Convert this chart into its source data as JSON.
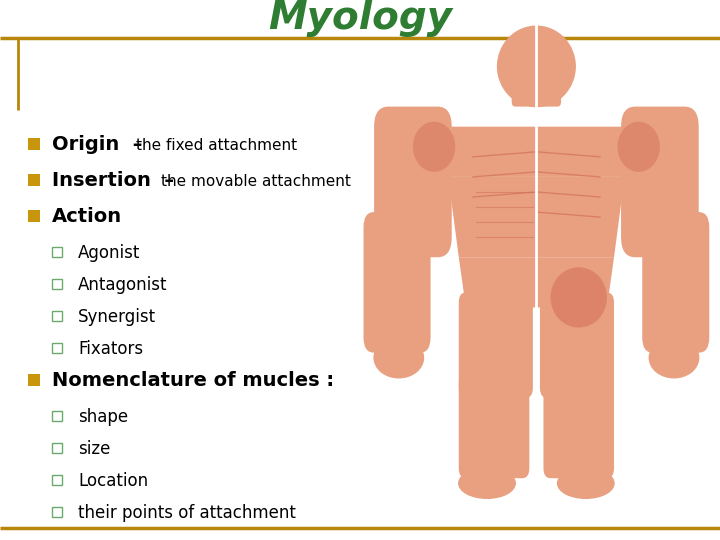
{
  "title": "Myology",
  "title_color": "#2e7d32",
  "title_fontsize": 28,
  "bg_color": "#ffffff",
  "border_color": "#b8860b",
  "bullet_color": "#c8960c",
  "sub_bullet_color": "#6aaa6a",
  "content": [
    {
      "type": "bullet",
      "text_bold": "Origin",
      "text_dash": "–",
      "text_rest": "the fixed attachment",
      "bold_size": 14,
      "rest_size": 11
    },
    {
      "type": "bullet",
      "text_bold": "Insertion",
      "text_dash": "–",
      "text_rest": "the movable attachment",
      "bold_size": 14,
      "rest_size": 11
    },
    {
      "type": "bullet",
      "text_bold": "Action",
      "text_dash": "",
      "text_rest": "",
      "bold_size": 14,
      "rest_size": 11
    },
    {
      "type": "sub_bullet",
      "text": "Agonist",
      "fontsize": 12
    },
    {
      "type": "sub_bullet",
      "text": "Antagonist",
      "fontsize": 12
    },
    {
      "type": "sub_bullet",
      "text": "Synergist",
      "fontsize": 12
    },
    {
      "type": "sub_bullet",
      "text": "Fixators",
      "fontsize": 12
    },
    {
      "type": "bullet",
      "text_bold": "Nomenclature of mucles :",
      "text_dash": "",
      "text_rest": "",
      "bold_size": 14,
      "rest_size": 11
    },
    {
      "type": "sub_bullet",
      "text": "shape",
      "fontsize": 12
    },
    {
      "type": "sub_bullet",
      "text": "size",
      "fontsize": 12
    },
    {
      "type": "sub_bullet",
      "text": "Location",
      "fontsize": 12
    },
    {
      "type": "sub_bullet",
      "text": "their points of attachment",
      "fontsize": 12
    }
  ]
}
